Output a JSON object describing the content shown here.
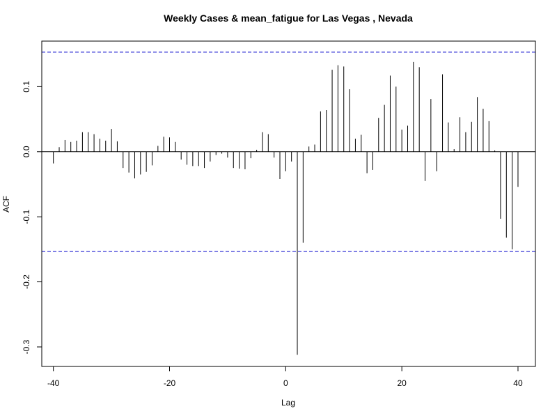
{
  "chart_data": {
    "type": "bar",
    "style": "acf-spikes",
    "title": "Weekly Cases & mean_fatigue for Las Vegas , Nevada",
    "xlabel": "Lag",
    "ylabel": "ACF",
    "xlim": [
      -42,
      43
    ],
    "ylim": [
      -0.33,
      0.17
    ],
    "x_ticks": [
      -40,
      -20,
      0,
      20,
      40
    ],
    "x_tick_labels": [
      "-40",
      "-20",
      "0",
      "20",
      "40"
    ],
    "y_ticks": [
      -0.3,
      -0.2,
      -0.1,
      0.0,
      0.1
    ],
    "y_tick_labels": [
      "-0.3",
      "-0.2",
      "-0.1",
      "0.0",
      "0.1"
    ],
    "confidence_bound": 0.153,
    "confidence_color": "#0000cc",
    "spike_color": "#000000",
    "x": [
      -40,
      -39,
      -38,
      -37,
      -36,
      -35,
      -34,
      -33,
      -32,
      -31,
      -30,
      -29,
      -28,
      -27,
      -26,
      -25,
      -24,
      -23,
      -22,
      -21,
      -20,
      -19,
      -18,
      -17,
      -16,
      -15,
      -14,
      -13,
      -12,
      -11,
      -10,
      -9,
      -8,
      -7,
      -6,
      -5,
      -4,
      -3,
      -2,
      -1,
      0,
      1,
      2,
      3,
      4,
      5,
      6,
      7,
      8,
      9,
      10,
      11,
      12,
      13,
      14,
      15,
      16,
      17,
      18,
      19,
      20,
      21,
      22,
      23,
      24,
      25,
      26,
      27,
      28,
      29,
      30,
      31,
      32,
      33,
      34,
      35,
      36,
      37,
      38,
      39,
      40
    ],
    "values": [
      -0.018,
      0.007,
      0.018,
      0.015,
      0.017,
      0.03,
      0.03,
      0.027,
      0.02,
      0.017,
      0.035,
      0.016,
      -0.025,
      -0.032,
      -0.041,
      -0.035,
      -0.031,
      -0.021,
      0.009,
      0.023,
      0.022,
      0.015,
      -0.012,
      -0.02,
      -0.022,
      -0.022,
      -0.025,
      -0.015,
      -0.005,
      -0.003,
      -0.009,
      -0.025,
      -0.026,
      -0.027,
      -0.01,
      0.003,
      0.03,
      0.027,
      -0.009,
      -0.042,
      -0.03,
      -0.015,
      -0.312,
      -0.14,
      0.008,
      0.011,
      0.062,
      0.064,
      0.126,
      0.133,
      0.131,
      0.096,
      0.02,
      0.026,
      -0.033,
      -0.028,
      0.052,
      0.072,
      0.117,
      0.1,
      0.034,
      0.04,
      0.138,
      0.13,
      -0.045,
      0.081,
      -0.03,
      0.119,
      0.045,
      0.004,
      0.053,
      0.03,
      0.046,
      0.084,
      0.066,
      0.047,
      0.002,
      -0.103,
      -0.132,
      -0.15,
      -0.054
    ]
  }
}
